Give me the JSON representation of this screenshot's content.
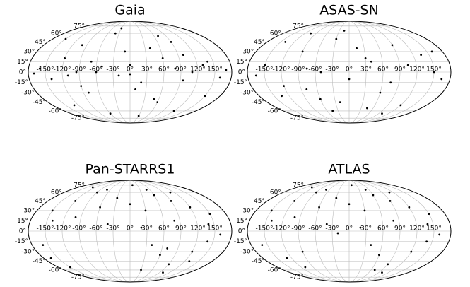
{
  "chart_data": [
    {
      "type": "scatter",
      "projection": "mollweide",
      "title": "Gaia",
      "color": "#000000",
      "grid": true,
      "x": [
        -160,
        -140,
        -120,
        -100,
        -80,
        -60,
        -40,
        -20,
        0,
        20,
        40,
        60,
        80,
        100,
        120,
        140,
        160,
        -150,
        -90,
        -30,
        30,
        90,
        150,
        -130,
        -70,
        -10,
        50,
        110,
        -110,
        -50,
        10,
        70,
        130,
        -170,
        170,
        -60,
        60,
        0,
        -95,
        95
      ],
      "y": [
        5,
        -10,
        20,
        40,
        -30,
        0,
        60,
        -5,
        10,
        -15,
        35,
        -45,
        5,
        25,
        -60,
        15,
        -8,
        50,
        -20,
        70,
        -70,
        45,
        -35,
        -50,
        15,
        30,
        -40,
        0,
        -5,
        8,
        -25,
        55,
        10,
        -2,
        3,
        -65,
        20,
        -3,
        0,
        -12
      ],
      "xlim": [
        -180,
        180
      ],
      "ylim": [
        -90,
        90
      ],
      "xticks": [
        {
          "value": -150,
          "label": "-150°"
        },
        {
          "value": -120,
          "label": "-120°"
        },
        {
          "value": -90,
          "label": "-90°"
        },
        {
          "value": -60,
          "label": "-60°"
        },
        {
          "value": -30,
          "label": "-30°"
        },
        {
          "value": 0,
          "label": "0°"
        },
        {
          "value": 30,
          "label": "30°"
        },
        {
          "value": 60,
          "label": "60°"
        },
        {
          "value": 90,
          "label": "90°"
        },
        {
          "value": 120,
          "label": "120°"
        },
        {
          "value": 150,
          "label": "150°"
        }
      ],
      "yticks": [
        {
          "value": -75,
          "label": "-75°"
        },
        {
          "value": -60,
          "label": "-60°"
        },
        {
          "value": -45,
          "label": "-45°"
        },
        {
          "value": -30,
          "label": "-30°"
        },
        {
          "value": -15,
          "label": "-15°"
        },
        {
          "value": 0,
          "label": "0°"
        },
        {
          "value": 15,
          "label": "15°"
        },
        {
          "value": 30,
          "label": "30°"
        },
        {
          "value": 45,
          "label": "45°"
        },
        {
          "value": 60,
          "label": "60°"
        },
        {
          "value": 75,
          "label": "75°"
        }
      ]
    },
    {
      "type": "scatter",
      "projection": "mollweide",
      "title": "ASAS-SN",
      "color": "#000000",
      "grid": true,
      "x": [
        -150,
        -120,
        -90,
        -60,
        -30,
        0,
        30,
        60,
        90,
        120,
        150,
        -165,
        -105,
        -45,
        15,
        75,
        135,
        -135,
        -75,
        -15,
        45,
        105,
        165,
        -140,
        -80,
        -20,
        40,
        100,
        160,
        -50
      ],
      "y": [
        10,
        -20,
        30,
        -40,
        50,
        -10,
        20,
        -30,
        40,
        -50,
        0,
        -5,
        60,
        -60,
        35,
        -15,
        25,
        -35,
        5,
        65,
        -55,
        10,
        -10,
        45,
        -25,
        -45,
        15,
        -65,
        30,
        0
      ],
      "xlim": [
        -180,
        180
      ],
      "ylim": [
        -90,
        90
      ],
      "xticks": [
        {
          "value": -150,
          "label": "-150°"
        },
        {
          "value": -120,
          "label": "-120°"
        },
        {
          "value": -90,
          "label": "-90°"
        },
        {
          "value": -60,
          "label": "-60°"
        },
        {
          "value": -30,
          "label": "-30°"
        },
        {
          "value": 0,
          "label": "0°"
        },
        {
          "value": 30,
          "label": "30°"
        },
        {
          "value": 60,
          "label": "60°"
        },
        {
          "value": 90,
          "label": "90°"
        },
        {
          "value": 120,
          "label": "120°"
        },
        {
          "value": 150,
          "label": "150°"
        }
      ],
      "yticks": [
        {
          "value": -75,
          "label": "-75°"
        },
        {
          "value": -60,
          "label": "-60°"
        },
        {
          "value": -45,
          "label": "-45°"
        },
        {
          "value": -30,
          "label": "-30°"
        },
        {
          "value": -15,
          "label": "-15°"
        },
        {
          "value": 0,
          "label": "0°"
        },
        {
          "value": 15,
          "label": "15°"
        },
        {
          "value": 30,
          "label": "30°"
        },
        {
          "value": 45,
          "label": "45°"
        },
        {
          "value": 60,
          "label": "60°"
        },
        {
          "value": 75,
          "label": "75°"
        }
      ]
    },
    {
      "type": "scatter",
      "projection": "mollweide",
      "title": "Pan-STARRS1",
      "color": "#000000",
      "grid": true,
      "x": [
        -150,
        -120,
        -90,
        -60,
        -30,
        0,
        30,
        60,
        90,
        120,
        150,
        -140,
        -100,
        -40,
        20,
        80,
        140,
        -160,
        -165,
        -150,
        40,
        60,
        90,
        120,
        140,
        30,
        70,
        100,
        130,
        -130,
        -70,
        10,
        50,
        110,
        160
      ],
      "y": [
        30,
        45,
        60,
        35,
        50,
        40,
        30,
        55,
        45,
        35,
        25,
        15,
        20,
        10,
        5,
        15,
        10,
        -20,
        -40,
        -55,
        -20,
        -35,
        -50,
        -30,
        -15,
        -60,
        -25,
        -65,
        -45,
        70,
        65,
        75,
        65,
        60,
        -5
      ],
      "xlim": [
        -180,
        180
      ],
      "ylim": [
        -90,
        90
      ],
      "xticks": [
        {
          "value": -150,
          "label": "-150°"
        },
        {
          "value": -120,
          "label": "-120°"
        },
        {
          "value": -90,
          "label": "-90°"
        },
        {
          "value": -60,
          "label": "-60°"
        },
        {
          "value": -30,
          "label": "-30°"
        },
        {
          "value": 0,
          "label": "0°"
        },
        {
          "value": 30,
          "label": "30°"
        },
        {
          "value": 60,
          "label": "60°"
        },
        {
          "value": 90,
          "label": "90°"
        },
        {
          "value": 120,
          "label": "120°"
        },
        {
          "value": 150,
          "label": "150°"
        }
      ],
      "yticks": [
        {
          "value": -75,
          "label": "-75°"
        },
        {
          "value": -60,
          "label": "-60°"
        },
        {
          "value": -45,
          "label": "-45°"
        },
        {
          "value": -30,
          "label": "-30°"
        },
        {
          "value": -15,
          "label": "-15°"
        },
        {
          "value": 0,
          "label": "0°"
        },
        {
          "value": 15,
          "label": "15°"
        },
        {
          "value": 30,
          "label": "30°"
        },
        {
          "value": 45,
          "label": "45°"
        },
        {
          "value": 60,
          "label": "60°"
        },
        {
          "value": 75,
          "label": "75°"
        }
      ]
    },
    {
      "type": "scatter",
      "projection": "mollweide",
      "title": "ATLAS",
      "color": "#000000",
      "grid": true,
      "x": [
        -150,
        -120,
        -90,
        -60,
        -30,
        0,
        30,
        60,
        90,
        120,
        150,
        -140,
        -100,
        -40,
        20,
        80,
        140,
        -160,
        -130,
        -110,
        -90,
        40,
        60,
        90,
        120,
        140,
        70,
        100,
        -130,
        -70,
        10,
        50,
        110,
        160,
        -20
      ],
      "y": [
        30,
        45,
        60,
        35,
        50,
        40,
        30,
        55,
        45,
        35,
        25,
        15,
        20,
        10,
        5,
        15,
        10,
        -20,
        -40,
        -55,
        -30,
        -20,
        -35,
        -50,
        -30,
        -15,
        -60,
        -65,
        70,
        65,
        75,
        65,
        60,
        -5,
        -3
      ],
      "xlim": [
        -180,
        180
      ],
      "ylim": [
        -90,
        90
      ],
      "xticks": [
        {
          "value": -150,
          "label": "-150°"
        },
        {
          "value": -120,
          "label": "-120°"
        },
        {
          "value": -90,
          "label": "-90°"
        },
        {
          "value": -60,
          "label": "-60°"
        },
        {
          "value": -30,
          "label": "-30°"
        },
        {
          "value": 0,
          "label": "0°"
        },
        {
          "value": 30,
          "label": "30°"
        },
        {
          "value": 60,
          "label": "60°"
        },
        {
          "value": 90,
          "label": "90°"
        },
        {
          "value": 120,
          "label": "120°"
        },
        {
          "value": 150,
          "label": "150°"
        }
      ],
      "yticks": [
        {
          "value": -75,
          "label": "-75°"
        },
        {
          "value": -60,
          "label": "-60°"
        },
        {
          "value": -45,
          "label": "-45°"
        },
        {
          "value": -30,
          "label": "-30°"
        },
        {
          "value": -15,
          "label": "-15°"
        },
        {
          "value": 0,
          "label": "0°"
        },
        {
          "value": 15,
          "label": "15°"
        },
        {
          "value": 30,
          "label": "30°"
        },
        {
          "value": 45,
          "label": "45°"
        },
        {
          "value": 60,
          "label": "60°"
        },
        {
          "value": 75,
          "label": "75°"
        }
      ]
    }
  ]
}
